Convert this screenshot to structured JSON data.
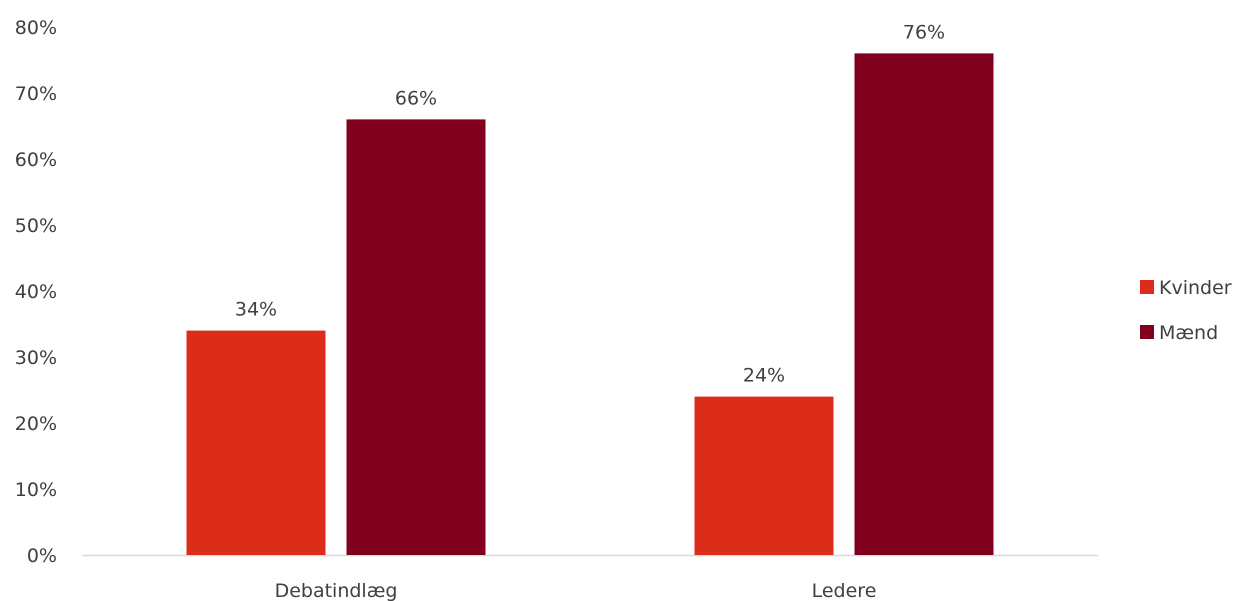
{
  "chart_data": {
    "type": "bar",
    "categories": [
      "Debatindlæg",
      "Ledere"
    ],
    "series": [
      {
        "name": "Kvinder",
        "values": [
          34,
          24
        ],
        "labels": [
          "34%",
          "24%"
        ],
        "color": "#dc2c1a"
      },
      {
        "name": "Mænd",
        "values": [
          66,
          76
        ],
        "labels": [
          "66%",
          "76%"
        ],
        "color": "#80001e"
      }
    ],
    "ylim": [
      0,
      80
    ],
    "yticks": [
      0,
      10,
      20,
      30,
      40,
      50,
      60,
      70,
      80
    ],
    "ytick_labels": [
      "0%",
      "10%",
      "20%",
      "30%",
      "40%",
      "50%",
      "60%",
      "70%",
      "80%"
    ],
    "grid": false,
    "legend_position": "right",
    "axis_color": "#d9d9d9"
  }
}
